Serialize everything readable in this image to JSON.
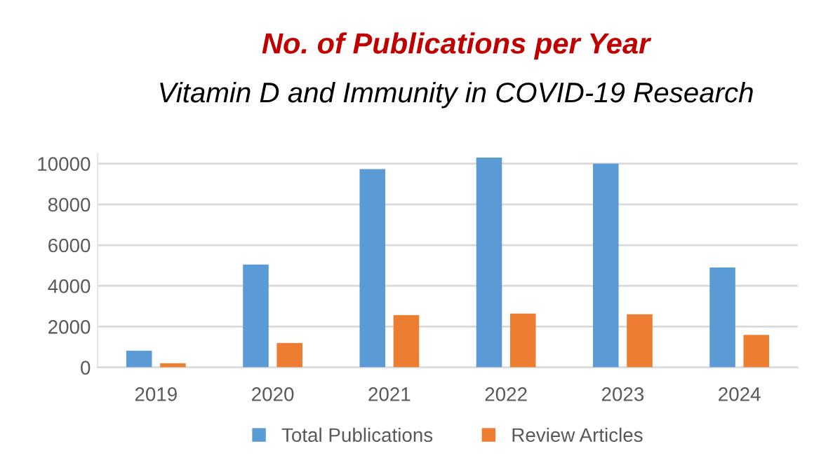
{
  "chart_data": {
    "type": "bar",
    "title": "No. of Publications per Year",
    "subtitle": "Vitamin D and Immunity in COVID-19 Research",
    "categories": [
      "2019",
      "2020",
      "2021",
      "2022",
      "2023",
      "2024"
    ],
    "series": [
      {
        "name": "Total Publications",
        "color": "#5b9bd5",
        "values": [
          820,
          5050,
          9730,
          10300,
          10000,
          4900
        ]
      },
      {
        "name": "Review Articles",
        "color": "#ed7d31",
        "values": [
          200,
          1200,
          2560,
          2640,
          2610,
          1590
        ]
      }
    ],
    "ylim": [
      0,
      10500
    ],
    "yticks": [
      0,
      2000,
      4000,
      6000,
      8000,
      10000
    ],
    "grid": "y",
    "legend": "bottom"
  }
}
